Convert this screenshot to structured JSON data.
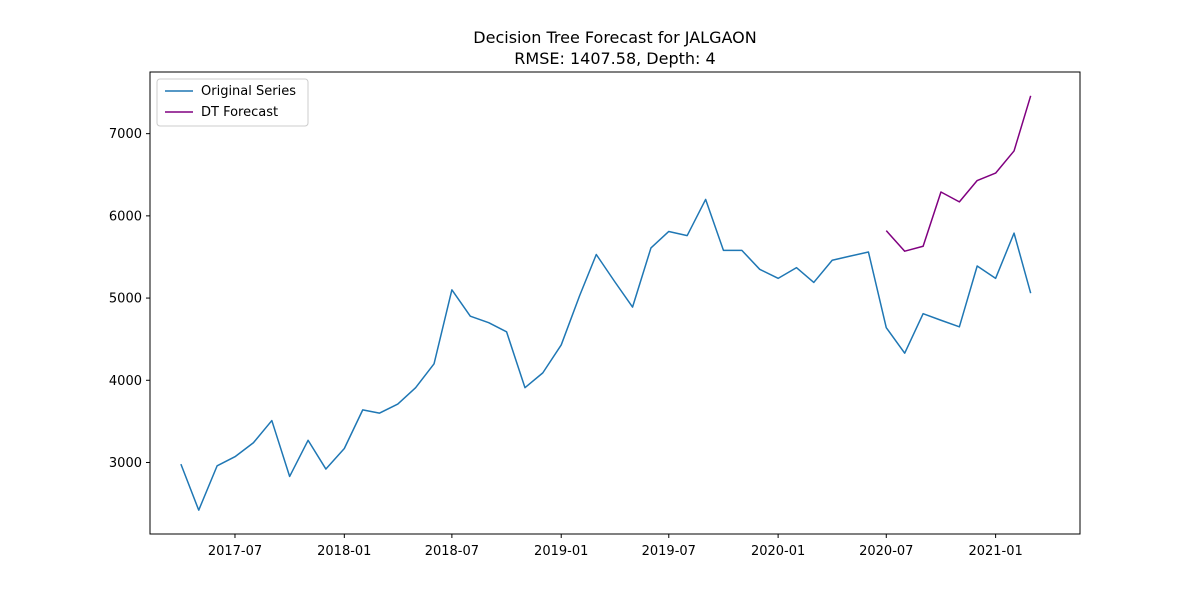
{
  "chart_data": {
    "type": "line",
    "title": "Decision Tree Forecast for JALGAON",
    "subtitle": "RMSE: 1407.58, Depth: 4",
    "xlabel": "",
    "ylabel": "",
    "xlim": [
      "2017-02-08",
      "2021-05-23"
    ],
    "ylim": [
      2130,
      7750
    ],
    "x_ticks": [
      {
        "date": "2017-07-01",
        "label": "2017-07"
      },
      {
        "date": "2018-01-01",
        "label": "2018-01"
      },
      {
        "date": "2018-07-01",
        "label": "2018-07"
      },
      {
        "date": "2019-01-01",
        "label": "2019-01"
      },
      {
        "date": "2019-07-01",
        "label": "2019-07"
      },
      {
        "date": "2020-01-01",
        "label": "2020-01"
      },
      {
        "date": "2020-07-01",
        "label": "2020-07"
      },
      {
        "date": "2021-01-01",
        "label": "2021-01"
      }
    ],
    "y_ticks": [
      {
        "value": 3000,
        "label": "3000"
      },
      {
        "value": 4000,
        "label": "4000"
      },
      {
        "value": 5000,
        "label": "5000"
      },
      {
        "value": 6000,
        "label": "6000"
      },
      {
        "value": 7000,
        "label": "7000"
      }
    ],
    "grid": false,
    "legend_position": "top-left",
    "series": [
      {
        "name": "Original Series",
        "color": "#1f77b4",
        "x": [
          "2017-04-01",
          "2017-05-01",
          "2017-06-01",
          "2017-07-01",
          "2017-08-01",
          "2017-09-01",
          "2017-10-01",
          "2017-11-01",
          "2017-12-01",
          "2018-01-01",
          "2018-02-01",
          "2018-03-01",
          "2018-04-01",
          "2018-05-01",
          "2018-06-01",
          "2018-07-01",
          "2018-08-01",
          "2018-09-01",
          "2018-10-01",
          "2018-11-01",
          "2018-12-01",
          "2019-01-01",
          "2019-02-01",
          "2019-03-01",
          "2019-04-01",
          "2019-05-01",
          "2019-06-01",
          "2019-07-01",
          "2019-08-01",
          "2019-09-01",
          "2019-10-01",
          "2019-11-01",
          "2019-12-01",
          "2020-01-01",
          "2020-02-01",
          "2020-03-01",
          "2020-04-01",
          "2020-05-01",
          "2020-06-01",
          "2020-07-01",
          "2020-08-01",
          "2020-09-01",
          "2020-10-01",
          "2020-11-01",
          "2020-12-01",
          "2021-01-01",
          "2021-02-01",
          "2021-03-01"
        ],
        "values": [
          2980,
          2420,
          2960,
          3070,
          3240,
          3510,
          2830,
          3270,
          2920,
          3170,
          3640,
          3600,
          3710,
          3910,
          4200,
          5100,
          4780,
          4700,
          4590,
          3910,
          4090,
          4430,
          5030,
          5530,
          5200,
          4890,
          5610,
          5810,
          5760,
          6200,
          5580,
          5580,
          5350,
          5240,
          5370,
          5190,
          5460,
          5510,
          5560,
          4640,
          4330,
          4810,
          4730,
          4650,
          5390,
          5240,
          5790,
          5060
        ]
      },
      {
        "name": "DT Forecast",
        "color": "#800080",
        "x": [
          "2020-07-01",
          "2020-08-01",
          "2020-09-01",
          "2020-10-01",
          "2020-11-01",
          "2020-12-01",
          "2021-01-01",
          "2021-02-01",
          "2021-03-01"
        ],
        "values": [
          5820,
          5570,
          5630,
          6290,
          6170,
          6430,
          6520,
          6790,
          7460
        ]
      }
    ]
  }
}
